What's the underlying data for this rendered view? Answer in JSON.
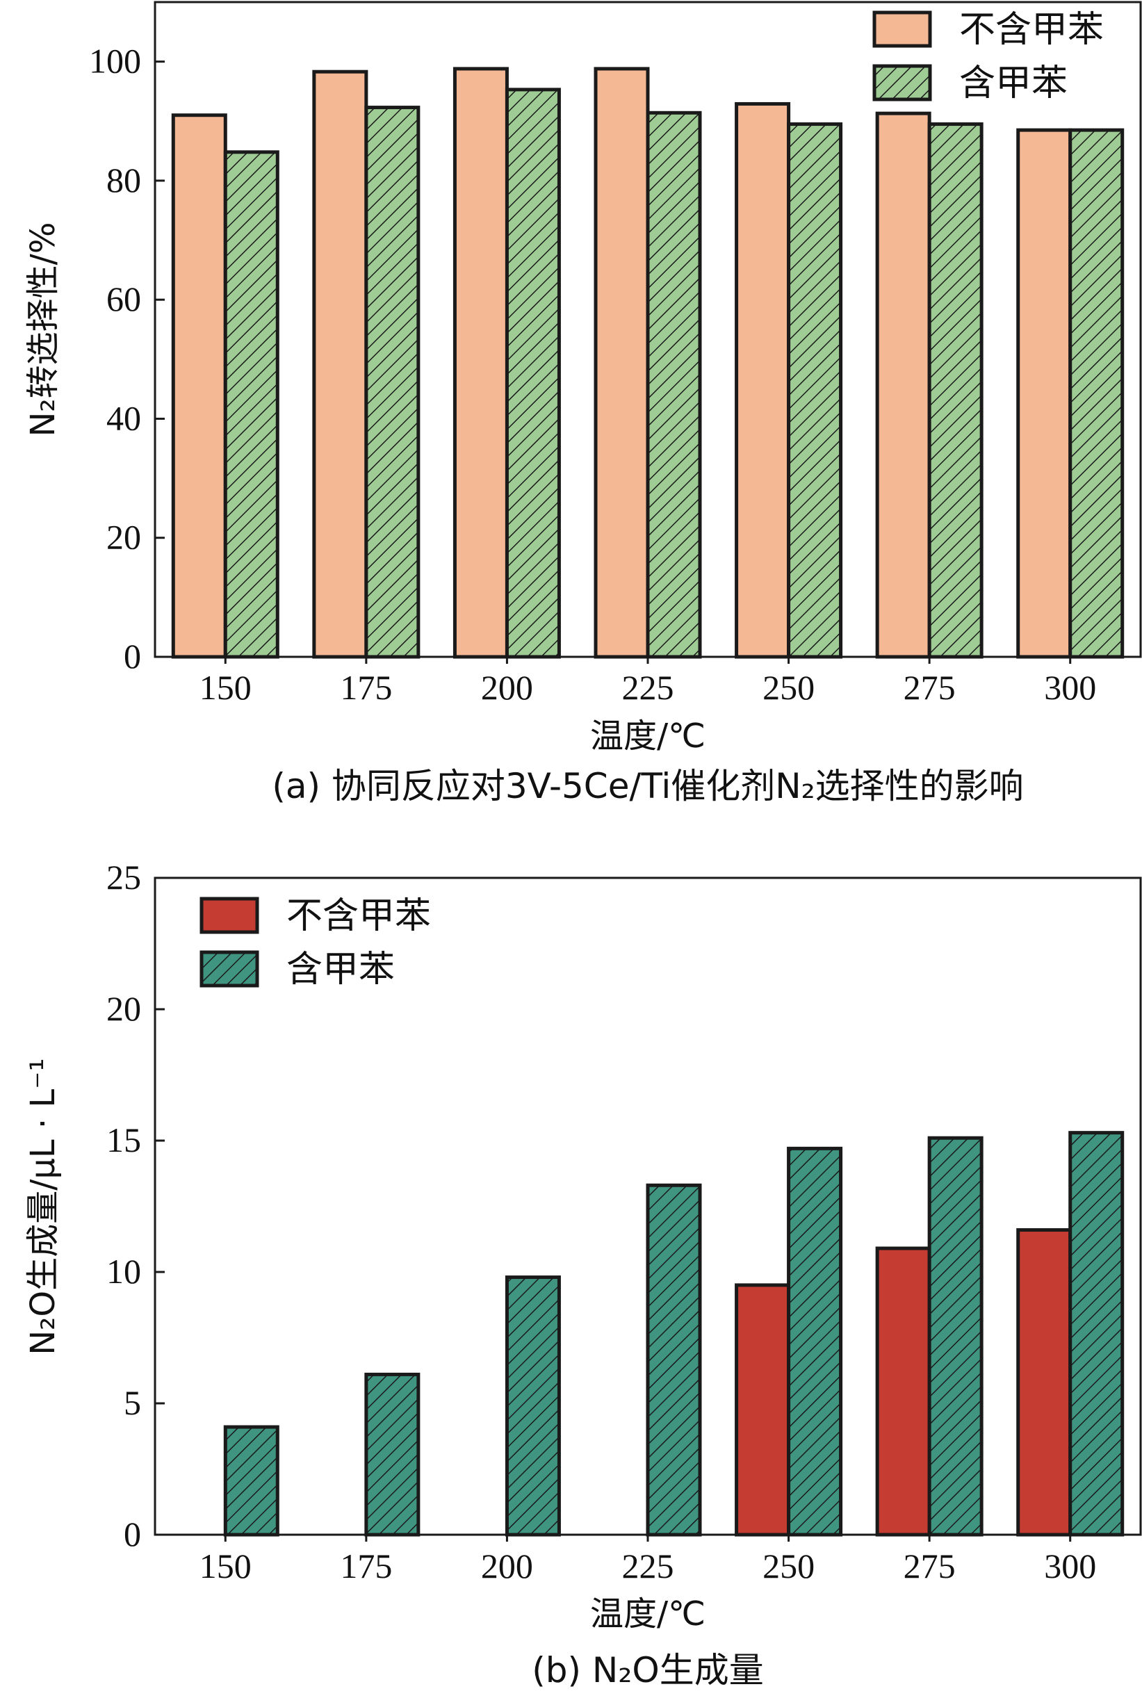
{
  "chart_data": [
    {
      "type": "bar",
      "caption": "(a) 协同反应对3V-5Ce/Ti催化剂N₂选择性的影响",
      "xlabel": "温度/℃",
      "ylabel": "N₂转选择性/%",
      "categories": [
        "150",
        "175",
        "200",
        "225",
        "250",
        "275",
        "300"
      ],
      "ylim": [
        0,
        110
      ],
      "yticks": [
        0,
        20,
        40,
        60,
        80,
        100
      ],
      "legend_position": "top-right",
      "series": [
        {
          "name": "不含甲苯",
          "color": "#f4b994",
          "pattern": "solid",
          "values": [
            91,
            98.3,
            98.8,
            98.8,
            92.9,
            91.3,
            88.5
          ]
        },
        {
          "name": "含甲苯",
          "color": "#9fcc94",
          "pattern": "hatch",
          "values": [
            84.8,
            92.3,
            95.3,
            91.4,
            89.5,
            89.5,
            88.5
          ]
        }
      ]
    },
    {
      "type": "bar",
      "caption": "(b) N₂O生成量",
      "xlabel": "温度/℃",
      "ylabel": "N₂O生成量/μL · L⁻¹",
      "categories": [
        "150",
        "175",
        "200",
        "225",
        "250",
        "275",
        "300"
      ],
      "ylim": [
        0,
        25
      ],
      "yticks": [
        0,
        5,
        10,
        15,
        20,
        25
      ],
      "legend_position": "top-left",
      "series": [
        {
          "name": "不含甲苯",
          "color": "#c53c32",
          "pattern": "solid",
          "values": [
            0,
            0,
            0,
            0,
            9.5,
            10.9,
            11.6
          ]
        },
        {
          "name": "含甲苯",
          "color": "#3f9580",
          "pattern": "hatch",
          "values": [
            4.1,
            6.1,
            9.8,
            13.3,
            14.7,
            15.1,
            15.3
          ]
        }
      ]
    }
  ]
}
